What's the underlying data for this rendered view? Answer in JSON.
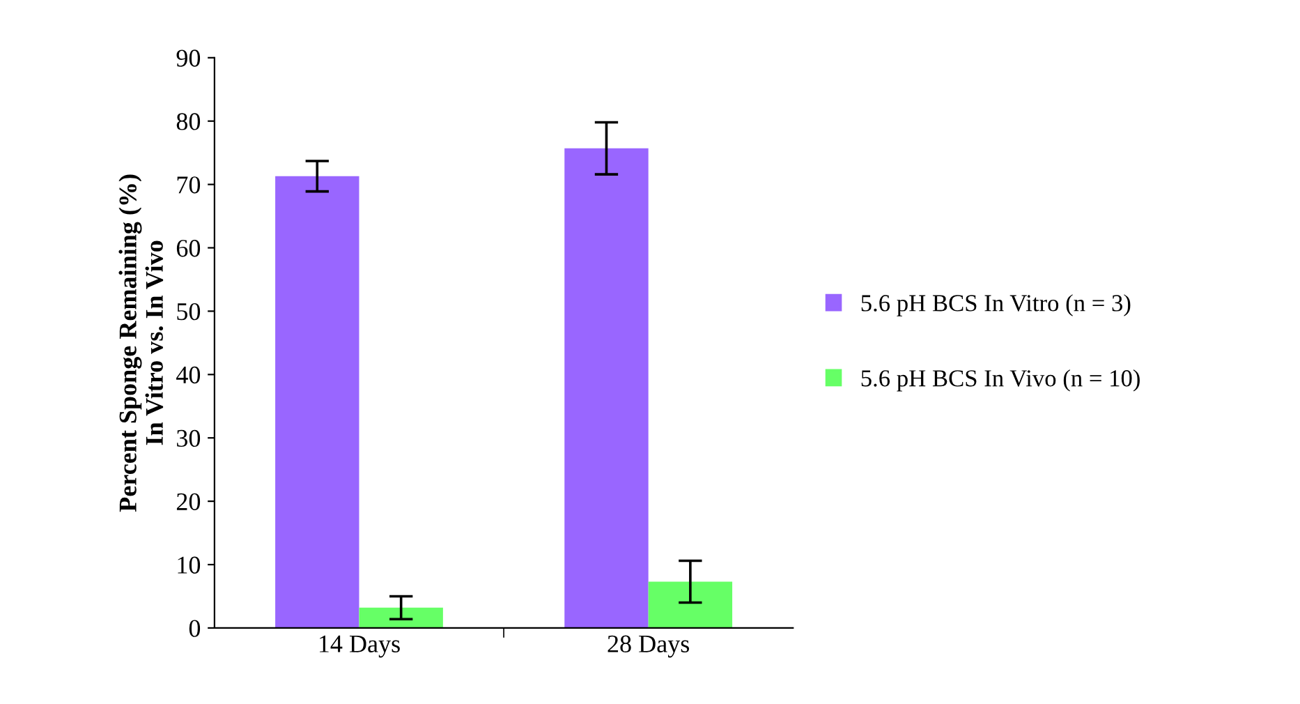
{
  "chart_data": {
    "type": "bar",
    "ylabel": "Percent Sponge Remaining (%)\nIn Vitro vs. In Vivo",
    "categories": [
      "14 Days",
      "28 Days"
    ],
    "series": [
      {
        "name": "5.6 pH BCS In Vitro (n = 3)",
        "color": "#9966ff",
        "values": [
          71.3,
          75.7
        ],
        "errors": [
          2.4,
          4.1
        ]
      },
      {
        "name": "5.6 pH BCS In Vivo (n = 10)",
        "color": "#66ff66",
        "values": [
          3.2,
          7.3
        ],
        "errors": [
          1.8,
          3.3
        ]
      }
    ],
    "ylim": [
      0,
      90
    ],
    "yticks": [
      0,
      10,
      20,
      30,
      40,
      50,
      60,
      70,
      80,
      90
    ],
    "grid": false,
    "legend": "right"
  }
}
